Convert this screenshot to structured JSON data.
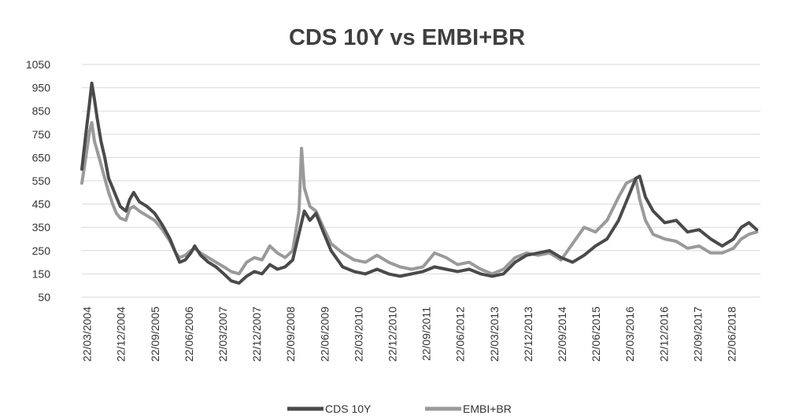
{
  "chart_data": {
    "type": "line",
    "title": "CDS 10Y vs EMBI+BR",
    "xlabel": "",
    "ylabel": "",
    "ylim": [
      50,
      1050
    ],
    "yticks": [
      "1050",
      "950",
      "850",
      "750",
      "650",
      "550",
      "450",
      "350",
      "250",
      "150",
      "50"
    ],
    "xlim": [
      "2004-01-01",
      "2018-09-30"
    ],
    "xtick_labels": [
      "22/03/2004",
      "22/12/2004",
      "22/09/2005",
      "22/06/2006",
      "22/03/2007",
      "22/12/2007",
      "22/09/2008",
      "22/06/2009",
      "22/03/2010",
      "22/12/2010",
      "22/09/2011",
      "22/06/2012",
      "22/03/2013",
      "22/12/2013",
      "22/09/2014",
      "22/06/2015",
      "22/03/2016",
      "22/12/2016",
      "22/09/2017",
      "22/06/2018"
    ],
    "grid": true,
    "legend_position": "bottom",
    "series": [
      {
        "name": "CDS 10Y",
        "color": "#4a4a4a",
        "points": [
          [
            "2004-01-01",
            600
          ],
          [
            "2004-02-01",
            750
          ],
          [
            "2004-03-01",
            880
          ],
          [
            "2004-03-20",
            970
          ],
          [
            "2004-04-10",
            900
          ],
          [
            "2004-05-01",
            820
          ],
          [
            "2004-06-01",
            720
          ],
          [
            "2004-07-01",
            650
          ],
          [
            "2004-08-01",
            560
          ],
          [
            "2004-09-01",
            520
          ],
          [
            "2004-10-01",
            480
          ],
          [
            "2004-11-01",
            440
          ],
          [
            "2004-12-15",
            420
          ],
          [
            "2005-01-15",
            470
          ],
          [
            "2005-02-15",
            500
          ],
          [
            "2005-04-01",
            460
          ],
          [
            "2005-06-01",
            440
          ],
          [
            "2005-08-01",
            410
          ],
          [
            "2005-10-01",
            360
          ],
          [
            "2005-12-01",
            300
          ],
          [
            "2006-01-15",
            240
          ],
          [
            "2006-02-15",
            200
          ],
          [
            "2006-04-01",
            210
          ],
          [
            "2006-05-15",
            240
          ],
          [
            "2006-06-15",
            270
          ],
          [
            "2006-08-01",
            230
          ],
          [
            "2006-10-01",
            200
          ],
          [
            "2006-12-01",
            180
          ],
          [
            "2007-02-01",
            150
          ],
          [
            "2007-04-01",
            120
          ],
          [
            "2007-06-01",
            110
          ],
          [
            "2007-08-01",
            140
          ],
          [
            "2007-10-01",
            160
          ],
          [
            "2007-12-01",
            150
          ],
          [
            "2008-02-01",
            190
          ],
          [
            "2008-04-01",
            170
          ],
          [
            "2008-06-01",
            180
          ],
          [
            "2008-08-01",
            210
          ],
          [
            "2008-10-01",
            350
          ],
          [
            "2008-11-01",
            420
          ],
          [
            "2008-12-15",
            380
          ],
          [
            "2009-02-01",
            410
          ],
          [
            "2009-04-01",
            330
          ],
          [
            "2009-06-01",
            250
          ],
          [
            "2009-09-01",
            180
          ],
          [
            "2009-12-01",
            160
          ],
          [
            "2010-03-01",
            150
          ],
          [
            "2010-06-01",
            170
          ],
          [
            "2010-09-01",
            150
          ],
          [
            "2010-12-01",
            140
          ],
          [
            "2011-03-01",
            150
          ],
          [
            "2011-06-01",
            160
          ],
          [
            "2011-09-01",
            180
          ],
          [
            "2011-12-01",
            170
          ],
          [
            "2012-03-01",
            160
          ],
          [
            "2012-06-01",
            170
          ],
          [
            "2012-09-01",
            150
          ],
          [
            "2012-12-01",
            140
          ],
          [
            "2013-03-01",
            150
          ],
          [
            "2013-06-01",
            200
          ],
          [
            "2013-09-01",
            230
          ],
          [
            "2013-12-01",
            240
          ],
          [
            "2014-03-01",
            250
          ],
          [
            "2014-06-01",
            220
          ],
          [
            "2014-09-01",
            200
          ],
          [
            "2014-12-01",
            230
          ],
          [
            "2015-03-01",
            270
          ],
          [
            "2015-06-01",
            300
          ],
          [
            "2015-09-01",
            380
          ],
          [
            "2015-12-01",
            500
          ],
          [
            "2016-01-15",
            560
          ],
          [
            "2016-02-15",
            570
          ],
          [
            "2016-04-01",
            480
          ],
          [
            "2016-06-01",
            420
          ],
          [
            "2016-09-01",
            370
          ],
          [
            "2016-12-01",
            380
          ],
          [
            "2017-03-01",
            330
          ],
          [
            "2017-06-01",
            340
          ],
          [
            "2017-09-01",
            300
          ],
          [
            "2017-12-01",
            270
          ],
          [
            "2018-03-01",
            300
          ],
          [
            "2018-05-01",
            350
          ],
          [
            "2018-07-01",
            370
          ],
          [
            "2018-09-01",
            340
          ]
        ]
      },
      {
        "name": "EMBI+BR",
        "color": "#9a9a9a",
        "points": [
          [
            "2004-01-01",
            540
          ],
          [
            "2004-02-01",
            650
          ],
          [
            "2004-03-01",
            760
          ],
          [
            "2004-03-20",
            800
          ],
          [
            "2004-04-10",
            720
          ],
          [
            "2004-05-01",
            680
          ],
          [
            "2004-06-01",
            620
          ],
          [
            "2004-07-01",
            560
          ],
          [
            "2004-08-01",
            500
          ],
          [
            "2004-09-01",
            450
          ],
          [
            "2004-10-01",
            410
          ],
          [
            "2004-11-01",
            390
          ],
          [
            "2004-12-15",
            380
          ],
          [
            "2005-01-15",
            430
          ],
          [
            "2005-02-15",
            440
          ],
          [
            "2005-04-01",
            420
          ],
          [
            "2005-06-01",
            400
          ],
          [
            "2005-08-01",
            380
          ],
          [
            "2005-10-01",
            340
          ],
          [
            "2005-12-01",
            290
          ],
          [
            "2006-01-15",
            240
          ],
          [
            "2006-02-15",
            220
          ],
          [
            "2006-04-01",
            230
          ],
          [
            "2006-05-15",
            250
          ],
          [
            "2006-06-15",
            260
          ],
          [
            "2006-08-01",
            240
          ],
          [
            "2006-10-01",
            220
          ],
          [
            "2006-12-01",
            200
          ],
          [
            "2007-02-01",
            180
          ],
          [
            "2007-04-01",
            160
          ],
          [
            "2007-06-01",
            150
          ],
          [
            "2007-08-01",
            200
          ],
          [
            "2007-10-01",
            220
          ],
          [
            "2007-12-01",
            210
          ],
          [
            "2008-02-01",
            270
          ],
          [
            "2008-04-01",
            240
          ],
          [
            "2008-06-01",
            220
          ],
          [
            "2008-08-01",
            250
          ],
          [
            "2008-09-20",
            420
          ],
          [
            "2008-10-10",
            690
          ],
          [
            "2008-11-01",
            520
          ],
          [
            "2008-12-15",
            440
          ],
          [
            "2009-02-01",
            420
          ],
          [
            "2009-04-01",
            350
          ],
          [
            "2009-06-01",
            280
          ],
          [
            "2009-09-01",
            240
          ],
          [
            "2009-12-01",
            210
          ],
          [
            "2010-03-01",
            200
          ],
          [
            "2010-06-01",
            230
          ],
          [
            "2010-09-01",
            200
          ],
          [
            "2010-12-01",
            180
          ],
          [
            "2011-03-01",
            170
          ],
          [
            "2011-06-01",
            180
          ],
          [
            "2011-09-01",
            240
          ],
          [
            "2011-12-01",
            220
          ],
          [
            "2012-03-01",
            190
          ],
          [
            "2012-06-01",
            200
          ],
          [
            "2012-09-01",
            170
          ],
          [
            "2012-12-01",
            150
          ],
          [
            "2013-03-01",
            170
          ],
          [
            "2013-06-01",
            220
          ],
          [
            "2013-09-01",
            240
          ],
          [
            "2013-12-01",
            230
          ],
          [
            "2014-03-01",
            240
          ],
          [
            "2014-06-01",
            210
          ],
          [
            "2014-09-01",
            280
          ],
          [
            "2014-12-01",
            350
          ],
          [
            "2015-03-01",
            330
          ],
          [
            "2015-06-01",
            380
          ],
          [
            "2015-09-01",
            480
          ],
          [
            "2015-11-01",
            540
          ],
          [
            "2016-01-15",
            560
          ],
          [
            "2016-02-15",
            470
          ],
          [
            "2016-04-01",
            380
          ],
          [
            "2016-06-01",
            320
          ],
          [
            "2016-09-01",
            300
          ],
          [
            "2016-12-01",
            290
          ],
          [
            "2017-03-01",
            260
          ],
          [
            "2017-06-01",
            270
          ],
          [
            "2017-09-01",
            240
          ],
          [
            "2017-12-01",
            240
          ],
          [
            "2018-03-01",
            260
          ],
          [
            "2018-05-01",
            300
          ],
          [
            "2018-07-01",
            320
          ],
          [
            "2018-09-01",
            330
          ]
        ]
      }
    ]
  }
}
